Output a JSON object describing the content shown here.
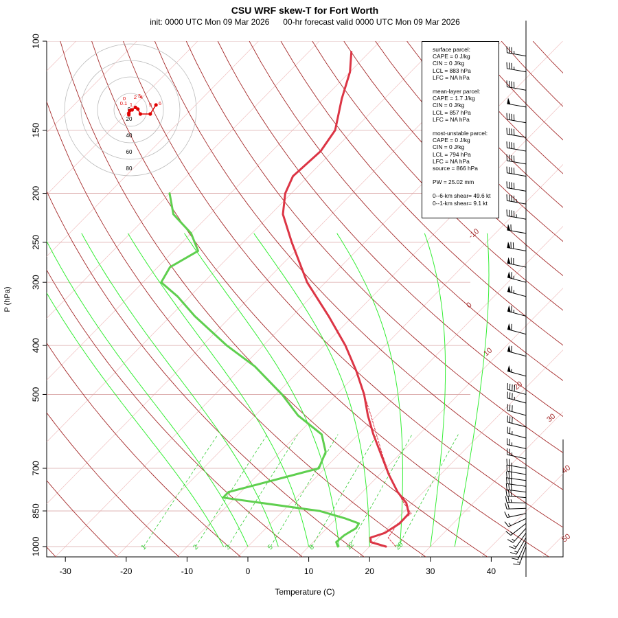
{
  "title": "CSU WRF skew-T for Fort Worth",
  "subtitle": "init: 0000 UTC Mon 09 Mar 2026      00-hr forecast valid 0000 UTC Mon 09 Mar 2026",
  "colors": {
    "temperature": "#dc3545",
    "dewpoint": "#5fcf4f",
    "dry_adiabat": "#a52a2a",
    "moist_adiabat": "#33ee33",
    "mixing_ratio": "#33cc33",
    "isobar": "#d9a6a6",
    "isotherm": "#f0c0c0",
    "parcel": "#dc3545"
  },
  "info_box": {
    "surface": [
      "surface parcel:",
      "CAPE = 0 J/kg",
      "CIN = 0 J/kg",
      "LCL = 883 hPa",
      "LFC = NA hPa"
    ],
    "mean_layer": [
      "mean-layer parcel:",
      "CAPE = 1.7 J/kg",
      "CIN = 0 J/kg",
      "LCL = 857 hPa",
      "LFC = NA hPa"
    ],
    "most_unstable": [
      "most-unstable parcel:",
      "CAPE = 0 J/kg",
      "CIN = 0 J/kg",
      "LCL = 794 hPa",
      "LFC = NA hPa",
      "source = 866 hPa"
    ],
    "pw": "PW =  25.02 mm",
    "shear": [
      "0--6-km shear= 49.6 kt",
      "0--1-km shear= 9.1 kt"
    ]
  },
  "chart_data": {
    "type": "line",
    "title": "CSU WRF skew-T for Fort Worth",
    "xlabel": "Temperature (C)",
    "ylabel": "P (hPa)",
    "x_ticks": [
      -30,
      -20,
      -10,
      0,
      10,
      20,
      30,
      40
    ],
    "y_ticks": [
      100,
      150,
      200,
      250,
      300,
      400,
      500,
      700,
      850,
      1000
    ],
    "y_scale": "log",
    "ylim": [
      1000,
      100
    ],
    "dry_adiabat_labels": [
      "-10",
      "0",
      "10",
      "20",
      "30",
      "40",
      "50"
    ],
    "mixing_ratio_labels": [
      "1",
      "2",
      "3",
      "5",
      "8",
      "12",
      "20"
    ],
    "series": [
      {
        "name": "Temperature",
        "points": [
          [
            1000,
            22.7
          ],
          [
            980,
            19.5
          ],
          [
            960,
            18.7
          ],
          [
            940,
            20.3
          ],
          [
            900,
            21.2
          ],
          [
            860,
            21.1
          ],
          [
            820,
            19.0
          ],
          [
            780,
            15.8
          ],
          [
            720,
            11.5
          ],
          [
            660,
            7.2
          ],
          [
            600,
            2.5
          ],
          [
            550,
            -1.5
          ],
          [
            500,
            -5.5
          ],
          [
            450,
            -10.5
          ],
          [
            400,
            -16.5
          ],
          [
            350,
            -24.0
          ],
          [
            300,
            -33.0
          ],
          [
            250,
            -42.0
          ],
          [
            220,
            -48.0
          ],
          [
            200,
            -51.0
          ],
          [
            185,
            -52.5
          ],
          [
            165,
            -52.0
          ],
          [
            150,
            -53.0
          ],
          [
            130,
            -57.0
          ],
          [
            115,
            -60.0
          ],
          [
            105,
            -63.0
          ]
        ]
      },
      {
        "name": "Dewpoint",
        "points": [
          [
            1000,
            14.8
          ],
          [
            980,
            13.8
          ],
          [
            950,
            14.0
          ],
          [
            920,
            14.8
          ],
          [
            900,
            14.5
          ],
          [
            880,
            11.5
          ],
          [
            850,
            6.0
          ],
          [
            800,
            -12.0
          ],
          [
            780,
            -12.0
          ],
          [
            700,
            -1.0
          ],
          [
            650,
            -2.5
          ],
          [
            600,
            -6.0
          ],
          [
            550,
            -13.0
          ],
          [
            500,
            -19.0
          ],
          [
            440,
            -28.0
          ],
          [
            400,
            -36.0
          ],
          [
            350,
            -46.0
          ],
          [
            320,
            -52.0
          ],
          [
            300,
            -57.0
          ],
          [
            280,
            -58.0
          ],
          [
            260,
            -56.0
          ],
          [
            240,
            -60.0
          ],
          [
            220,
            -66.0
          ],
          [
            200,
            -70.0
          ]
        ]
      },
      {
        "name": "Parcel",
        "points": [
          [
            1000,
            24.3
          ],
          [
            960,
            21.6
          ],
          [
            900,
            20.9
          ],
          [
            860,
            21.5
          ],
          [
            820,
            18.6
          ],
          [
            780,
            15.8
          ],
          [
            720,
            11.6
          ],
          [
            660,
            7.4
          ],
          [
            600,
            3.0
          ],
          [
            550,
            -1.0
          ],
          [
            500,
            -5.5
          ]
        ]
      }
    ],
    "hodograph": {
      "rings": [
        20,
        40,
        60,
        80
      ],
      "point_labels": [
        "0",
        "0.1",
        "1",
        "2",
        "3",
        "4",
        "5",
        "6"
      ],
      "points": [
        [
          -2,
          -6
        ],
        [
          -2,
          -4
        ],
        [
          -1,
          -1
        ],
        [
          2,
          0
        ],
        [
          6,
          3
        ],
        [
          9,
          1
        ],
        [
          12,
          -5
        ],
        [
          24,
          -5
        ],
        [
          31,
          6
        ]
      ]
    },
    "wind_barbs": [
      {
        "p": 1000,
        "dir": 200,
        "spd": 15
      },
      {
        "p": 980,
        "dir": 205,
        "spd": 15
      },
      {
        "p": 960,
        "dir": 210,
        "spd": 15
      },
      {
        "p": 940,
        "dir": 215,
        "spd": 15
      },
      {
        "p": 920,
        "dir": 222,
        "spd": 15
      },
      {
        "p": 900,
        "dir": 232,
        "spd": 15
      },
      {
        "p": 880,
        "dir": 245,
        "spd": 15
      },
      {
        "p": 860,
        "dir": 258,
        "spd": 15
      },
      {
        "p": 840,
        "dir": 268,
        "spd": 20
      },
      {
        "p": 820,
        "dir": 272,
        "spd": 25
      },
      {
        "p": 800,
        "dir": 275,
        "spd": 30
      },
      {
        "p": 780,
        "dir": 277,
        "spd": 30
      },
      {
        "p": 760,
        "dir": 278,
        "spd": 30
      },
      {
        "p": 740,
        "dir": 278,
        "spd": 30
      },
      {
        "p": 720,
        "dir": 280,
        "spd": 30
      },
      {
        "p": 700,
        "dir": 280,
        "spd": 25
      },
      {
        "p": 670,
        "dir": 282,
        "spd": 25
      },
      {
        "p": 640,
        "dir": 282,
        "spd": 25
      },
      {
        "p": 610,
        "dir": 285,
        "spd": 25
      },
      {
        "p": 580,
        "dir": 285,
        "spd": 30
      },
      {
        "p": 550,
        "dir": 285,
        "spd": 30
      },
      {
        "p": 520,
        "dir": 285,
        "spd": 35
      },
      {
        "p": 500,
        "dir": 285,
        "spd": 40
      },
      {
        "p": 460,
        "dir": 285,
        "spd": 55
      },
      {
        "p": 420,
        "dir": 285,
        "spd": 60
      },
      {
        "p": 380,
        "dir": 285,
        "spd": 60
      },
      {
        "p": 350,
        "dir": 285,
        "spd": 65
      },
      {
        "p": 320,
        "dir": 285,
        "spd": 65
      },
      {
        "p": 300,
        "dir": 285,
        "spd": 65
      },
      {
        "p": 280,
        "dir": 282,
        "spd": 70
      },
      {
        "p": 260,
        "dir": 280,
        "spd": 70
      },
      {
        "p": 240,
        "dir": 280,
        "spd": 60
      },
      {
        "p": 225,
        "dir": 280,
        "spd": 45
      },
      {
        "p": 210,
        "dir": 280,
        "spd": 45
      },
      {
        "p": 198,
        "dir": 280,
        "spd": 40
      },
      {
        "p": 185,
        "dir": 280,
        "spd": 40
      },
      {
        "p": 175,
        "dir": 280,
        "spd": 40
      },
      {
        "p": 165,
        "dir": 280,
        "spd": 40
      },
      {
        "p": 155,
        "dir": 280,
        "spd": 40
      },
      {
        "p": 145,
        "dir": 280,
        "spd": 40
      },
      {
        "p": 135,
        "dir": 280,
        "spd": 50
      },
      {
        "p": 125,
        "dir": 280,
        "spd": 40
      },
      {
        "p": 115,
        "dir": 280,
        "spd": 35
      },
      {
        "p": 107,
        "dir": 280,
        "spd": 35
      }
    ]
  }
}
